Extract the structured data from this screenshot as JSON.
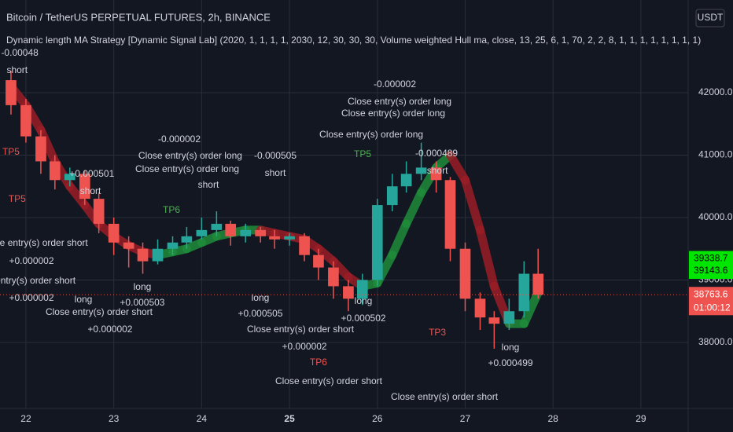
{
  "chart_data": {
    "type": "candlestick",
    "title": "Bitcoin / TetherUS PERPETUAL FUTURES, 2h, BINANCE",
    "subtitle": "Dynamic length MA Strategy [Dynamic Signal Lab] (2020, 1, 1, 1, 1, 2030, 12, 30, 30, 30, Volume weighted Hull ma, close, 13, 25, 6, 1, 70, 2, 2, 8, 1, 1, 1, 1, 1, 1, 1, 1)",
    "currency": "USDT",
    "xlim": [
      21.705,
      29.538
    ],
    "ylim": [
      36943,
      43484
    ],
    "xticks": [
      22,
      23,
      24,
      25,
      26,
      27,
      28,
      29
    ],
    "bold_xtick": 25,
    "yticks": [
      {
        "value": 38000,
        "label": "38000.0"
      },
      {
        "value": 39000,
        "label": "39000.0"
      },
      {
        "value": 40000,
        "label": "40000.0"
      },
      {
        "value": 41000,
        "label": "41000.0"
      },
      {
        "value": 42000,
        "label": "42000.0"
      }
    ],
    "grid": true,
    "up_color": "#26a69a",
    "down_color": "#ef5350",
    "x": [
      21.83,
      22.0,
      22.17,
      22.33,
      22.5,
      22.67,
      22.83,
      23.0,
      23.17,
      23.33,
      23.5,
      23.67,
      23.83,
      24.0,
      24.17,
      24.33,
      24.5,
      24.67,
      24.83,
      25.0,
      25.17,
      25.33,
      25.5,
      25.67,
      25.83,
      26.0,
      26.17,
      26.33,
      26.5,
      26.67,
      26.83,
      27.0,
      27.17,
      27.33,
      27.5,
      27.67,
      27.83
    ],
    "open": [
      42200,
      41800,
      41300,
      40900,
      40600,
      40700,
      40300,
      39900,
      39600,
      39500,
      39300,
      39500,
      39600,
      39700,
      39800,
      39900,
      39700,
      39800,
      39700,
      39650,
      39700,
      39400,
      39200,
      38900,
      38700,
      39000,
      40200,
      40500,
      40700,
      40800,
      40600,
      39500,
      38700,
      38400,
      38300,
      38500,
      39100
    ],
    "high": [
      42350,
      41900,
      41400,
      41000,
      40800,
      40750,
      40400,
      40000,
      39700,
      39600,
      39650,
      39700,
      39850,
      40000,
      40100,
      39950,
      39900,
      39850,
      39800,
      39750,
      39750,
      39500,
      39300,
      39000,
      39100,
      40300,
      40700,
      40900,
      41200,
      40900,
      40650,
      39600,
      38800,
      38500,
      38700,
      39300,
      39500
    ],
    "low": [
      41650,
      41200,
      40700,
      40450,
      40500,
      40200,
      39750,
      39400,
      39200,
      39100,
      39250,
      39400,
      39500,
      39650,
      39700,
      39550,
      39600,
      39600,
      39500,
      39550,
      39300,
      39000,
      38700,
      38500,
      38600,
      38900,
      40100,
      40400,
      40600,
      40400,
      39300,
      38500,
      38200,
      37900,
      38200,
      38400,
      38700
    ],
    "close": [
      41800,
      41300,
      40900,
      40600,
      40700,
      40300,
      39900,
      39600,
      39500,
      39300,
      39500,
      39600,
      39700,
      39800,
      39900,
      39700,
      39800,
      39700,
      39650,
      39700,
      39400,
      39200,
      38900,
      38700,
      39000,
      40200,
      40500,
      40700,
      40800,
      40600,
      39500,
      38700,
      38400,
      38300,
      38500,
      39100,
      38763.6
    ],
    "ma": {
      "values": [
        42100,
        41800,
        41400,
        40900,
        40500,
        40200,
        39900,
        39700,
        39550,
        39450,
        39400,
        39450,
        39500,
        39600,
        39700,
        39750,
        39800,
        39800,
        39750,
        39700,
        39650,
        39500,
        39300,
        39050,
        38900,
        38950,
        39400,
        39900,
        40400,
        40800,
        41000,
        40600,
        39800,
        38900,
        38300,
        38300,
        38800
      ],
      "up_color": "#1e8c3a",
      "down_color": "#9a1e26"
    },
    "annotations": [
      {
        "text": "-0.00048",
        "x": 21.93,
        "y": 42629,
        "color": "#d1d4dc"
      },
      {
        "text": "short",
        "x": 21.9,
        "y": 42352,
        "color": "#d1d4dc"
      },
      {
        "text": "TP5",
        "x": 21.83,
        "y": 41044,
        "color": "#ef5350"
      },
      {
        "text": "TP5",
        "x": 21.9,
        "y": 40289,
        "color": "#ef5350"
      },
      {
        "text": "+0.000501",
        "x": 22.75,
        "y": 40691,
        "color": "#d1d4dc"
      },
      {
        "text": "short",
        "x": 22.735,
        "y": 40415,
        "color": "#d1d4dc"
      },
      {
        "text": "lose entry(s) order short",
        "x": 22.135,
        "y": 39585,
        "color": "#d1d4dc"
      },
      {
        "text": "+0.000002",
        "x": 22.063,
        "y": 39295,
        "color": "#d1d4dc"
      },
      {
        "text": "entry(s) order short",
        "x": 22.108,
        "y": 38981,
        "color": "#d1d4dc"
      },
      {
        "text": "+0.000002",
        "x": 22.063,
        "y": 38704,
        "color": "#d1d4dc"
      },
      {
        "text": "long",
        "x": 22.654,
        "y": 38679,
        "color": "#d1d4dc"
      },
      {
        "text": "Close entry(s) order short",
        "x": 22.833,
        "y": 38478,
        "color": "#d1d4dc"
      },
      {
        "text": "+0.000002",
        "x": 22.958,
        "y": 38201,
        "color": "#d1d4dc"
      },
      {
        "text": "long",
        "x": 23.325,
        "y": 38880,
        "color": "#d1d4dc"
      },
      {
        "text": "+0.000503",
        "x": 23.325,
        "y": 38629,
        "color": "#d1d4dc"
      },
      {
        "text": "-0.000002",
        "x": 23.746,
        "y": 41245,
        "color": "#d1d4dc"
      },
      {
        "text": "Close entry(s) order long",
        "x": 23.871,
        "y": 40981,
        "color": "#d1d4dc"
      },
      {
        "text": "Close entry(s) order long",
        "x": 23.836,
        "y": 40767,
        "color": "#d1d4dc"
      },
      {
        "text": "short",
        "x": 24.077,
        "y": 40515,
        "color": "#d1d4dc"
      },
      {
        "text": "TP6",
        "x": 23.657,
        "y": 40113,
        "color": "#4caf50"
      },
      {
        "text": "-0.000505",
        "x": 24.838,
        "y": 40981,
        "color": "#d1d4dc"
      },
      {
        "text": "short",
        "x": 24.838,
        "y": 40704,
        "color": "#d1d4dc"
      },
      {
        "text": "long",
        "x": 24.668,
        "y": 38704,
        "color": "#d1d4dc"
      },
      {
        "text": "+0.000505",
        "x": 24.668,
        "y": 38452,
        "color": "#d1d4dc"
      },
      {
        "text": "Close entry(s) order short",
        "x": 25.125,
        "y": 38201,
        "color": "#d1d4dc"
      },
      {
        "text": "+0.000002",
        "x": 25.17,
        "y": 37924,
        "color": "#d1d4dc"
      },
      {
        "text": "TP6",
        "x": 25.33,
        "y": 37672,
        "color": "#ef5350"
      },
      {
        "text": "Close entry(s) order short",
        "x": 25.447,
        "y": 37371,
        "color": "#d1d4dc"
      },
      {
        "text": "long",
        "x": 25.841,
        "y": 38654,
        "color": "#d1d4dc"
      },
      {
        "text": "+0.000502",
        "x": 25.841,
        "y": 38377,
        "color": "#d1d4dc"
      },
      {
        "text": "-0.000002",
        "x": 26.199,
        "y": 42125,
        "color": "#d1d4dc"
      },
      {
        "text": "Close entry(s) order long",
        "x": 26.253,
        "y": 41849,
        "color": "#d1d4dc"
      },
      {
        "text": "Close entry(s) order long",
        "x": 26.181,
        "y": 41660,
        "color": "#d1d4dc"
      },
      {
        "text": "Close entry(s) order long",
        "x": 25.931,
        "y": 41320,
        "color": "#d1d4dc"
      },
      {
        "text": "TP5",
        "x": 25.832,
        "y": 41006,
        "color": "#4caf50"
      },
      {
        "text": "-0.000489",
        "x": 26.674,
        "y": 41019,
        "color": "#d1d4dc"
      },
      {
        "text": "short",
        "x": 26.683,
        "y": 40742,
        "color": "#d1d4dc"
      },
      {
        "text": "TP3",
        "x": 26.683,
        "y": 38151,
        "color": "#ef5350"
      },
      {
        "text": "long",
        "x": 27.515,
        "y": 37911,
        "color": "#d1d4dc"
      },
      {
        "text": "+0.000499",
        "x": 27.515,
        "y": 37660,
        "color": "#d1d4dc"
      },
      {
        "text": "Close entry(s) order short",
        "x": 26.763,
        "y": 37119,
        "color": "#d1d4dc"
      }
    ],
    "price_badges": [
      {
        "value": 39338.7,
        "color": "#00e600",
        "text_color": "#000000"
      },
      {
        "value": 39143.6,
        "color": "#00e600",
        "text_color": "#000000"
      },
      {
        "value": 38763.6,
        "color": "#ef5350",
        "text_color": "#ffffff"
      }
    ],
    "countdown": "01:00:12"
  }
}
